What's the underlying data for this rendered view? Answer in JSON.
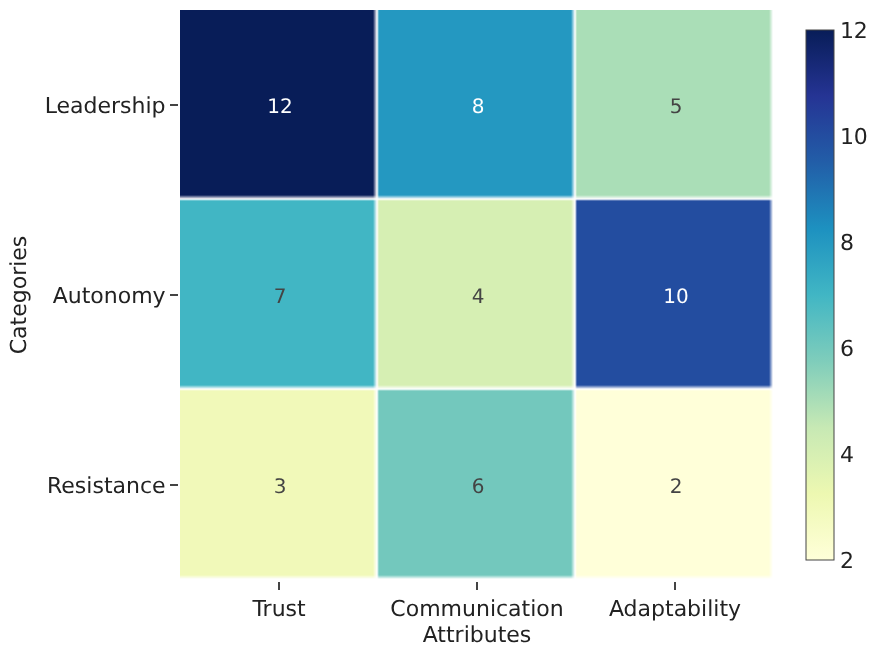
{
  "chart_data": {
    "type": "heatmap",
    "xlabel": "Attributes",
    "ylabel": "Categories",
    "categories": [
      "Trust",
      "Communication",
      "Adaptability"
    ],
    "y_categories": [
      "Leadership",
      "Autonomy",
      "Resistance"
    ],
    "cells": [
      [
        12,
        8,
        5
      ],
      [
        7,
        4,
        10
      ],
      [
        3,
        6,
        2
      ]
    ],
    "clim": [
      2,
      12
    ],
    "cticks": [
      2,
      4,
      6,
      8,
      10,
      12
    ],
    "data_labels": true
  }
}
